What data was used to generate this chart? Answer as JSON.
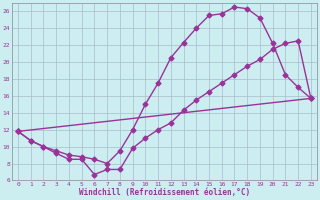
{
  "xlabel": "Windchill (Refroidissement éolien,°C)",
  "ylabel": "",
  "xlim": [
    -0.5,
    23.5
  ],
  "ylim": [
    6,
    27
  ],
  "xticks": [
    0,
    1,
    2,
    3,
    4,
    5,
    6,
    7,
    8,
    9,
    10,
    11,
    12,
    13,
    14,
    15,
    16,
    17,
    18,
    19,
    20,
    21,
    22,
    23
  ],
  "yticks": [
    6,
    8,
    10,
    12,
    14,
    16,
    18,
    20,
    22,
    24,
    26
  ],
  "background_color": "#cceef0",
  "grid_color": "#aabbcc",
  "line_color": "#993399",
  "curve_upper_x": [
    0,
    1,
    2,
    3,
    4,
    5,
    6,
    7,
    8,
    9,
    10,
    11,
    12,
    13,
    14,
    15,
    16,
    17,
    18,
    19,
    20,
    21,
    22,
    23
  ],
  "curve_upper_y": [
    11.8,
    10.7,
    10.0,
    9.5,
    9.0,
    8.8,
    8.5,
    8.0,
    9.5,
    12.0,
    15.0,
    17.5,
    20.5,
    22.3,
    24.0,
    25.5,
    25.7,
    26.5,
    26.3,
    25.2,
    22.2,
    18.5,
    17.0,
    15.7
  ],
  "curve_lower_x": [
    0,
    1,
    2,
    3,
    4,
    5,
    6,
    7,
    8,
    9,
    10,
    11,
    12,
    13,
    14,
    15,
    16,
    17,
    18,
    19,
    20,
    21,
    22,
    23
  ],
  "curve_lower_y": [
    11.8,
    10.7,
    10.0,
    9.2,
    8.5,
    8.5,
    6.7,
    7.3,
    7.3,
    9.8,
    11.0,
    12.0,
    12.8,
    14.3,
    15.5,
    16.5,
    17.5,
    18.5,
    19.5,
    20.3,
    21.5,
    22.2,
    22.5,
    15.7
  ],
  "curve_line_x": [
    0,
    23
  ],
  "curve_line_y": [
    11.8,
    15.7
  ],
  "marker": "D",
  "markersize": 2.5,
  "linewidth": 1.0
}
